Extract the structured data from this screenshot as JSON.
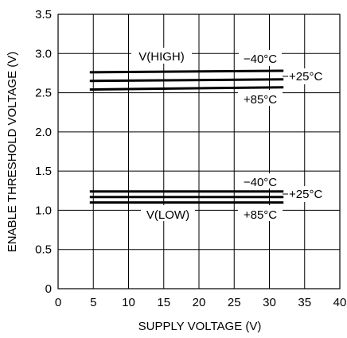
{
  "chart_data": {
    "type": "line",
    "title": "",
    "xlabel": "SUPPLY VOLTAGE (V)",
    "ylabel": "ENABLE THRESHOLD VOLTAGE (V)",
    "xlim": [
      0,
      40
    ],
    "ylim": [
      0,
      3.5
    ],
    "x_ticks": [
      "0",
      "5",
      "10",
      "15",
      "20",
      "25",
      "30",
      "35",
      "40"
    ],
    "y_ticks": [
      "0",
      "0.5",
      "1.0",
      "1.5",
      "2.0",
      "2.5",
      "3.0",
      "3.5"
    ],
    "grid": true,
    "group_labels": [
      "V(HIGH)",
      "V(LOW)"
    ],
    "series": [
      {
        "name": "-40°C",
        "group": "V(HIGH)",
        "x": [
          4.5,
          32
        ],
        "y": [
          2.76,
          2.78
        ]
      },
      {
        "name": "+25°C",
        "group": "V(HIGH)",
        "x": [
          4.5,
          32
        ],
        "y": [
          2.65,
          2.67
        ]
      },
      {
        "name": "+85°C",
        "group": "V(HIGH)",
        "x": [
          4.5,
          32
        ],
        "y": [
          2.54,
          2.57
        ]
      },
      {
        "name": "-40°C",
        "group": "V(LOW)",
        "x": [
          4.5,
          32
        ],
        "y": [
          1.24,
          1.24
        ]
      },
      {
        "name": "+25°C",
        "group": "V(LOW)",
        "x": [
          4.5,
          32
        ],
        "y": [
          1.17,
          1.17
        ]
      },
      {
        "name": "+85°C",
        "group": "V(LOW)",
        "x": [
          4.5,
          32
        ],
        "y": [
          1.1,
          1.1
        ]
      }
    ],
    "annotations": {
      "high_neg40": "−40°C",
      "high_plus25": "+25°C",
      "high_plus85": "+85°C",
      "low_neg40": "−40°C",
      "low_plus25": "+25°C",
      "low_plus85": "+85°C"
    }
  }
}
